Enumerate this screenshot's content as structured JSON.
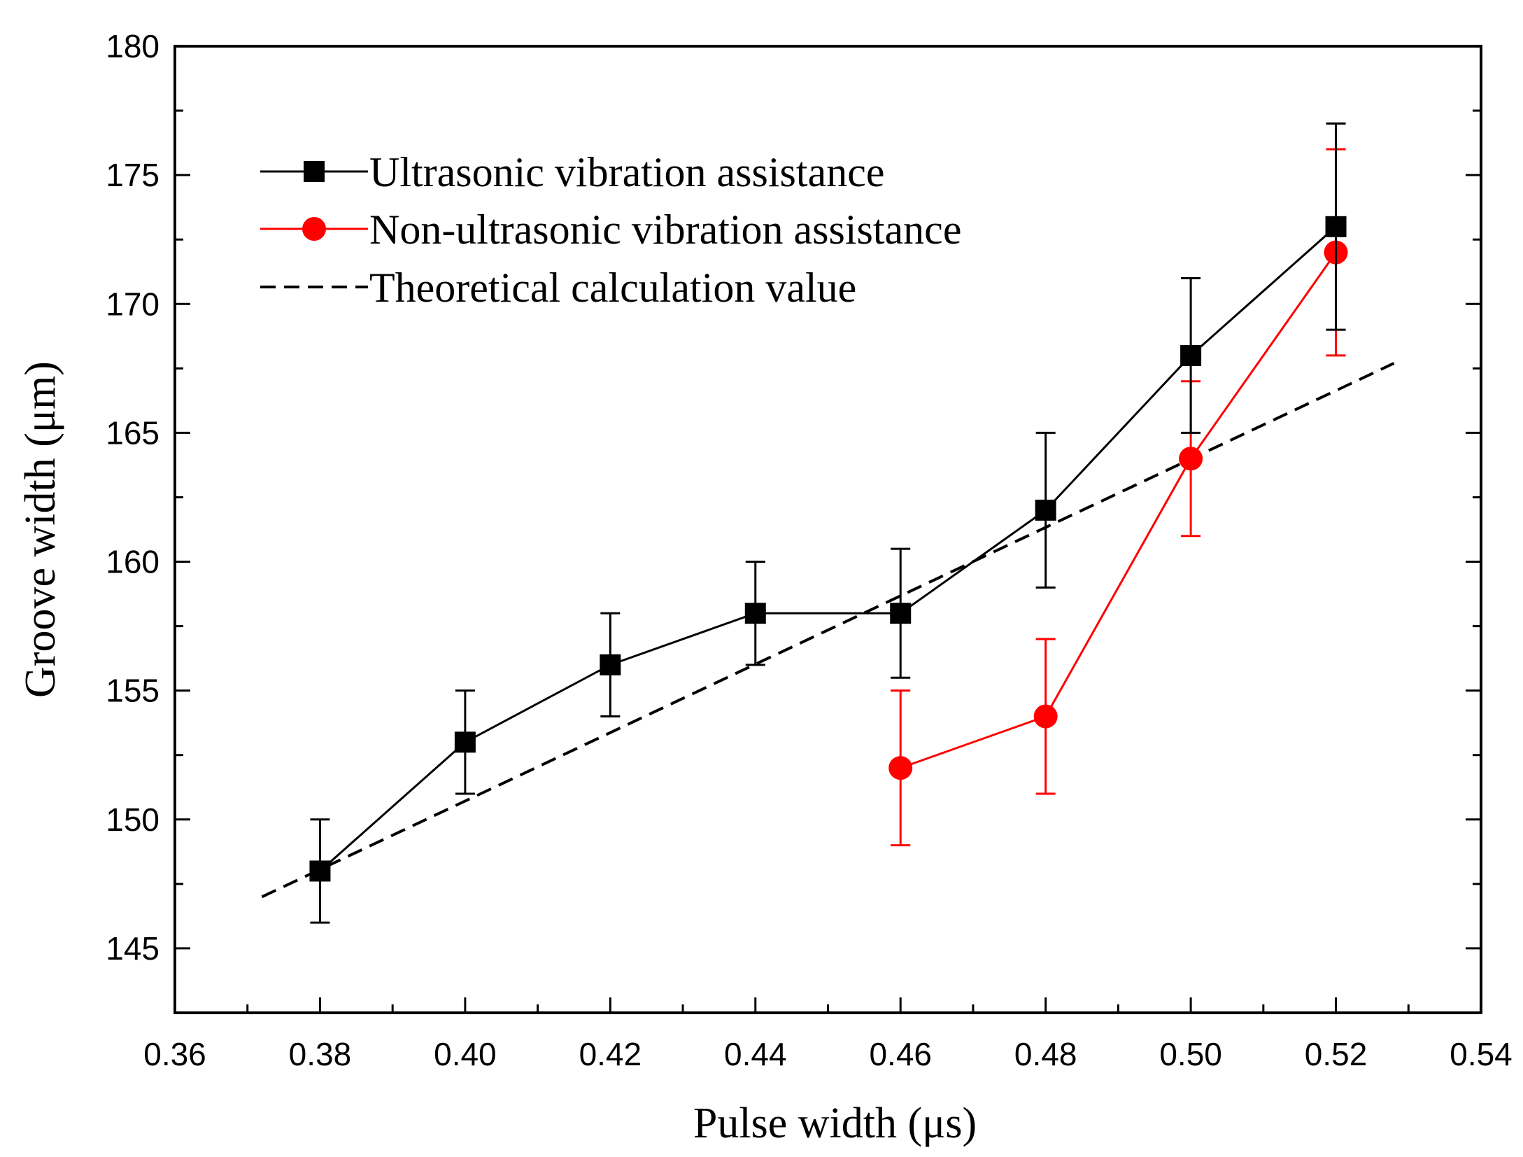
{
  "chart_data": {
    "type": "line",
    "xlabel": "Pulse width (μs)",
    "ylabel": "Groove width (μm)",
    "xlim": [
      0.36,
      0.54
    ],
    "ylim": [
      142.5,
      180
    ],
    "x_major_ticks": [
      0.36,
      0.38,
      0.4,
      0.42,
      0.44,
      0.46,
      0.48,
      0.5,
      0.52,
      0.54
    ],
    "x_tick_labels": [
      "0.36",
      "0.38",
      "0.40",
      "0.42",
      "0.44",
      "0.46",
      "0.48",
      "0.50",
      "0.52",
      "0.54"
    ],
    "x_minor_ticks": [
      0.37,
      0.39,
      0.41,
      0.43,
      0.45,
      0.47,
      0.49,
      0.51,
      0.53
    ],
    "y_major_ticks": [
      145,
      150,
      155,
      160,
      165,
      170,
      175,
      180
    ],
    "y_tick_labels": [
      "145",
      "150",
      "155",
      "160",
      "165",
      "170",
      "175",
      "180"
    ],
    "y_minor_ticks": [
      147.5,
      152.5,
      157.5,
      162.5,
      167.5,
      172.5,
      177.5
    ],
    "legend_position": "top-left",
    "series": [
      {
        "name": "Ultrasonic vibration assistance",
        "color": "#000000",
        "marker": "square",
        "x": [
          0.38,
          0.4,
          0.42,
          0.44,
          0.46,
          0.48,
          0.5,
          0.52
        ],
        "y": [
          148,
          153,
          156,
          158,
          158,
          162,
          168,
          173
        ],
        "err_low": [
          146,
          151,
          154,
          156,
          155.5,
          159,
          165,
          169
        ],
        "err_high": [
          150,
          155,
          158,
          160,
          160.5,
          165,
          171,
          177
        ]
      },
      {
        "name": "Non-ultrasonic vibration assistance",
        "color": "#ff0000",
        "marker": "circle",
        "x": [
          0.46,
          0.48,
          0.5,
          0.52
        ],
        "y": [
          152,
          154,
          164,
          172
        ],
        "err_low": [
          149,
          151,
          161,
          168
        ],
        "err_high": [
          155,
          157,
          167,
          176
        ]
      },
      {
        "name": "Theoretical calculation value",
        "color": "#000000",
        "marker": "none",
        "linestyle": "dashed",
        "x": [
          0.372,
          0.528
        ],
        "y": [
          147.0,
          167.7
        ]
      }
    ]
  }
}
